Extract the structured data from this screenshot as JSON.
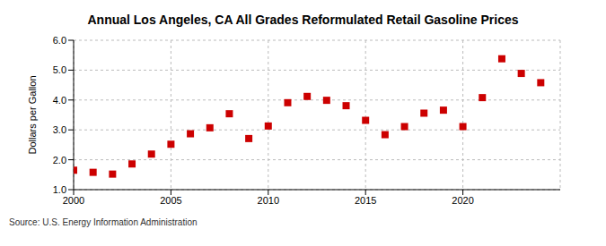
{
  "chart_data": {
    "type": "scatter",
    "title": "Annual Los Angeles, CA All Grades Reformulated Retail Gasoline Prices",
    "y_label": "Dollars per Gallon",
    "source": "Source: U.S. Energy Information Administration",
    "x": [
      2000,
      2001,
      2002,
      2003,
      2004,
      2005,
      2006,
      2007,
      2008,
      2009,
      2010,
      2011,
      2012,
      2013,
      2014,
      2015,
      2016,
      2017,
      2018,
      2019,
      2020,
      2021,
      2022,
      2023,
      2024
    ],
    "values": [
      1.65,
      1.58,
      1.52,
      1.86,
      2.19,
      2.52,
      2.87,
      3.07,
      3.54,
      2.71,
      3.13,
      3.91,
      4.12,
      3.99,
      3.81,
      3.32,
      2.84,
      3.11,
      3.56,
      3.66,
      3.11,
      4.08,
      5.38,
      4.89,
      4.58
    ],
    "color": "#cc0000",
    "marker": "square",
    "xlim": [
      2000,
      2025
    ],
    "xticks": [
      2000,
      2005,
      2010,
      2015,
      2020
    ],
    "ylim": [
      1.0,
      6.0
    ],
    "yticks": [
      {
        "value": 1.0,
        "label": "1.0"
      },
      {
        "value": 2.0,
        "label": "2.0"
      },
      {
        "value": 3.0,
        "label": "3.0"
      },
      {
        "value": 4.0,
        "label": "4.0"
      },
      {
        "value": 5.0,
        "label": "5.0"
      },
      {
        "value": 6.0,
        "label": "6.0"
      }
    ],
    "grid": true
  }
}
